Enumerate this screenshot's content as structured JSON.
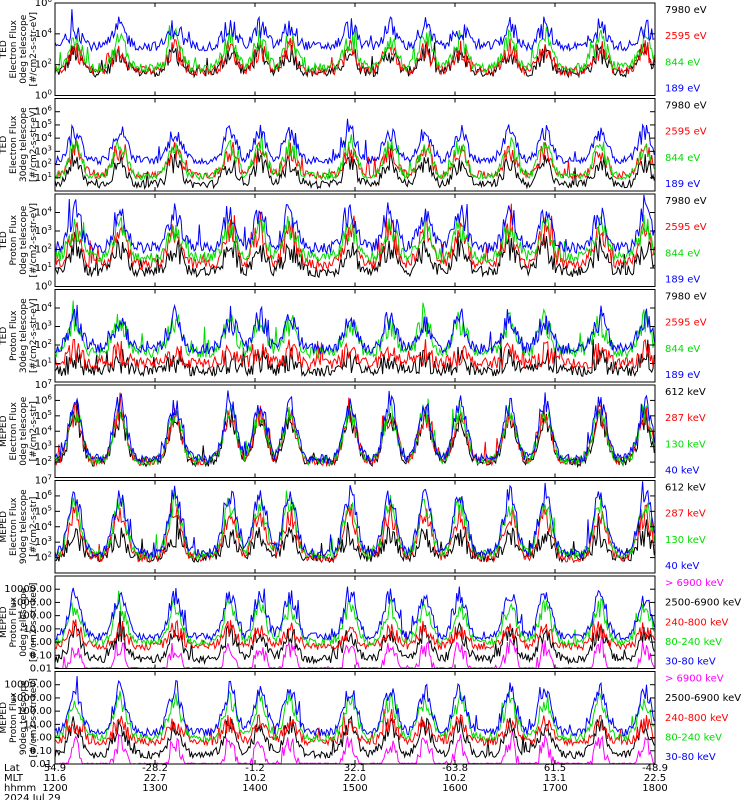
{
  "chart_data": {
    "type": "line",
    "title": "",
    "colors": {
      "blue": "#0000ff",
      "red": "#ff0000",
      "green": "#00dd00",
      "black": "#000000",
      "magenta": "#ff00ff"
    },
    "time_axis": {
      "tick_hours": [
        12,
        13,
        14,
        15,
        16,
        17,
        18
      ],
      "labels": {
        "lat": [
          "54.9",
          "-28.2",
          "-1.2",
          "32.1",
          "-63.8",
          "61.5",
          "-48.9"
        ],
        "mlt": [
          "11.6",
          "22.7",
          "10.2",
          "22.0",
          "10.2",
          "13.1",
          "22.5"
        ],
        "hhmm": [
          "1200",
          "1300",
          "1400",
          "1500",
          "1600",
          "1700",
          "1800"
        ]
      },
      "row_labels": [
        "Lat",
        "MLT",
        "hhmm"
      ],
      "date": "2024 Jul 29"
    },
    "panels": [
      {
        "ylabel": [
          "TED",
          "Electron Flux",
          "0deg telescope",
          "[#/cm2-s-str-eV]"
        ],
        "scale": "log",
        "ylim": [
          1,
          1000000
        ],
        "ytick_exp": [
          0,
          2,
          4,
          6
        ],
        "series": [
          {
            "name": "7980 eV",
            "color": "black",
            "base": 1.5,
            "amp": 1.3
          },
          {
            "name": "2595 eV",
            "color": "red",
            "base": 1.6,
            "amp": 1.4
          },
          {
            "name": "844 eV",
            "color": "green",
            "base": 1.8,
            "amp": 1.8
          },
          {
            "name": "189 eV",
            "color": "blue",
            "base": 3.2,
            "amp": 1.2
          }
        ]
      },
      {
        "ylabel": [
          "TED",
          "Electron Flux",
          "30deg telescope",
          "[#/cm2-s-str-eV]"
        ],
        "scale": "log",
        "ylim": [
          1,
          10000000
        ],
        "ytick_exp": [
          1,
          2,
          3,
          4,
          5,
          6
        ],
        "series": [
          {
            "name": "7980 eV",
            "color": "black",
            "base": 0.5,
            "amp": 1.6
          },
          {
            "name": "2595 eV",
            "color": "red",
            "base": 1.2,
            "amp": 1.8
          },
          {
            "name": "844 eV",
            "color": "green",
            "base": 1.1,
            "amp": 2.3
          },
          {
            "name": "189 eV",
            "color": "blue",
            "base": 2.3,
            "amp": 2.2
          }
        ]
      },
      {
        "ylabel": [
          "TED",
          "Proton Flux",
          "0deg telescope",
          "[#/cm2-s-str-eV]"
        ],
        "scale": "log",
        "ylim": [
          1,
          100000
        ],
        "ytick_exp": [
          0,
          1,
          2,
          3,
          4
        ],
        "series": [
          {
            "name": "7980 eV",
            "color": "black",
            "base": 0.8,
            "amp": 1.3
          },
          {
            "name": "2595 eV",
            "color": "red",
            "base": 1.2,
            "amp": 1.8
          },
          {
            "name": "844 eV",
            "color": "green",
            "base": 1.6,
            "amp": 1.6
          },
          {
            "name": "189 eV",
            "color": "blue",
            "base": 2.1,
            "amp": 1.9
          }
        ]
      },
      {
        "ylabel": [
          "TED",
          "Proton Flux",
          "30deg telescope",
          "[#/cm2-s-str-eV]"
        ],
        "scale": "log",
        "ylim": [
          1,
          100000
        ],
        "ytick_exp": [
          1,
          2,
          3,
          4
        ],
        "series": [
          {
            "name": "7980 eV",
            "color": "black",
            "base": 0.6,
            "amp": 0.6
          },
          {
            "name": "2595 eV",
            "color": "red",
            "base": 1.0,
            "amp": 0.6
          },
          {
            "name": "844 eV",
            "color": "green",
            "base": 1.6,
            "amp": 1.6
          },
          {
            "name": "189 eV",
            "color": "blue",
            "base": 1.8,
            "amp": 1.6
          }
        ]
      },
      {
        "ylabel": [
          "MEPED",
          "Electron Flux",
          "0deg telescope",
          "[#/cm2-s-str]"
        ],
        "scale": "log",
        "ylim": [
          10,
          10000000
        ],
        "ytick_exp": [
          2,
          3,
          4,
          5,
          6,
          7
        ],
        "series": [
          {
            "name": "612 keV",
            "color": "black",
            "base": 2.0,
            "amp": 2.8
          },
          {
            "name": "287 keV",
            "color": "red",
            "base": 2.05,
            "amp": 3.0
          },
          {
            "name": "130 keV",
            "color": "green",
            "base": 2.1,
            "amp": 3.2
          },
          {
            "name": "40 keV",
            "color": "blue",
            "base": 2.2,
            "amp": 3.6
          }
        ]
      },
      {
        "ylabel": [
          "MEPED",
          "Electron Flux",
          "90deg telescope",
          "[#/cm2-s-str]"
        ],
        "scale": "log",
        "ylim": [
          10,
          10000000
        ],
        "ytick_exp": [
          2,
          3,
          4,
          5,
          6,
          7
        ],
        "series": [
          {
            "name": "612 keV",
            "color": "black",
            "base": 2.0,
            "amp": 1.4
          },
          {
            "name": "287 keV",
            "color": "red",
            "base": 2.0,
            "amp": 2.8
          },
          {
            "name": "130 keV",
            "color": "green",
            "base": 2.2,
            "amp": 3.2
          },
          {
            "name": "40 keV",
            "color": "blue",
            "base": 2.3,
            "amp": 3.8
          }
        ]
      },
      {
        "ylabel": [
          "MEPED",
          "Proton Flux",
          "0deg telescope",
          "[#/cm2-s-str-keV]"
        ],
        "scale": "log",
        "ylim": [
          0.01,
          100000
        ],
        "ytick_labels": [
          "0.01",
          "0.10",
          "1.00",
          "10.00",
          "100.00",
          "1000.00",
          "10000.00"
        ],
        "ytick_exp": [
          -2,
          -1,
          0,
          1,
          2,
          3,
          4
        ],
        "series": [
          {
            "name": "> 6900 keV",
            "color": "magenta",
            "base": -3.0,
            "amp": 2.6
          },
          {
            "name": "2500-6900 keV",
            "color": "black",
            "base": -1.3,
            "amp": 2.0
          },
          {
            "name": "240-800 keV",
            "color": "red",
            "base": -0.3,
            "amp": 1.3
          },
          {
            "name": "80-240 keV",
            "color": "green",
            "base": 0.0,
            "amp": 2.6
          },
          {
            "name": "30-80 keV",
            "color": "blue",
            "base": 0.4,
            "amp": 3.1
          }
        ]
      },
      {
        "ylabel": [
          "MEPED",
          "Proton Flux",
          "90deg telescope",
          "[#/cm2-s-str-keV]"
        ],
        "scale": "log",
        "ylim": [
          0.01,
          100000
        ],
        "ytick_labels": [
          "0.01",
          "0.10",
          "1.00",
          "10.00",
          "100.00",
          "1000.00",
          "10000.00"
        ],
        "ytick_exp": [
          -2,
          -1,
          0,
          1,
          2,
          3,
          4
        ],
        "series": [
          {
            "name": "> 6900 keV",
            "color": "magenta",
            "base": -3.0,
            "amp": 2.6
          },
          {
            "name": "2500-6900 keV",
            "color": "black",
            "base": -1.3,
            "amp": 2.2
          },
          {
            "name": "240-800 keV",
            "color": "red",
            "base": -0.3,
            "amp": 1.4
          },
          {
            "name": "80-240 keV",
            "color": "green",
            "base": 0.0,
            "amp": 2.8
          },
          {
            "name": "30-80 keV",
            "color": "blue",
            "base": 0.4,
            "amp": 3.2
          }
        ]
      }
    ],
    "pass_centers_hours": [
      12.2,
      12.65,
      13.2,
      13.75,
      14.05,
      14.35,
      14.95,
      15.35,
      15.7,
      16.05,
      16.55,
      16.9,
      17.45,
      17.9
    ]
  }
}
